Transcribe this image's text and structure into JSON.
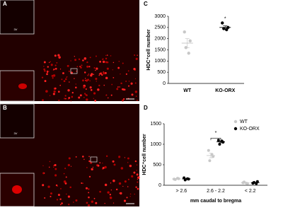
{
  "panels": [
    "A",
    "B",
    "C",
    "D"
  ],
  "image_labels": [
    "3V",
    "3V"
  ],
  "chart_data": [
    {
      "type": "dot",
      "ylabel": "HDC⁺cell number",
      "categories": [
        "WT",
        "KO-ORX"
      ],
      "colors": [
        "#c8c8c8",
        "#000000"
      ],
      "values": [
        [
          2300,
          1900,
          1600,
          1350
        ],
        [
          2700,
          2500,
          2450,
          2400
        ]
      ],
      "mean": [
        1800,
        2500
      ],
      "sem": [
        200,
        70
      ],
      "ylim": [
        0,
        3000
      ],
      "yticks": [
        0,
        500,
        1000,
        1500,
        2000,
        2500,
        3000
      ],
      "annotation": "*"
    },
    {
      "type": "grouped-dot",
      "ylabel": "HDC⁺cell number",
      "xlabel": "mm caudal to bregma",
      "categories": [
        "> 2.6",
        "2.6 - 2.2",
        "< 2.2"
      ],
      "series": [
        {
          "name": "WT",
          "color": "#c8c8c8",
          "values": [
            [
              150,
              160,
              140,
              170
            ],
            [
              850,
              700,
              600,
              750
            ],
            [
              60,
              40,
              80,
              50
            ]
          ],
          "mean": [
            155,
            725,
            58
          ],
          "sem": [
            8,
            55,
            10
          ]
        },
        {
          "name": "KO-ORX",
          "color": "#000000",
          "values": [
            [
              180,
              150,
              130,
              160
            ],
            [
              1100,
              1050,
              1000,
              1080
            ],
            [
              50,
              90,
              70,
              40
            ]
          ],
          "mean": [
            155,
            1058,
            63
          ],
          "sem": [
            10,
            22,
            11
          ]
        }
      ],
      "ylim": [
        0,
        1500
      ],
      "yticks": [
        0,
        500,
        1000,
        1500
      ],
      "annotation": "*",
      "legend": "upper right"
    }
  ]
}
